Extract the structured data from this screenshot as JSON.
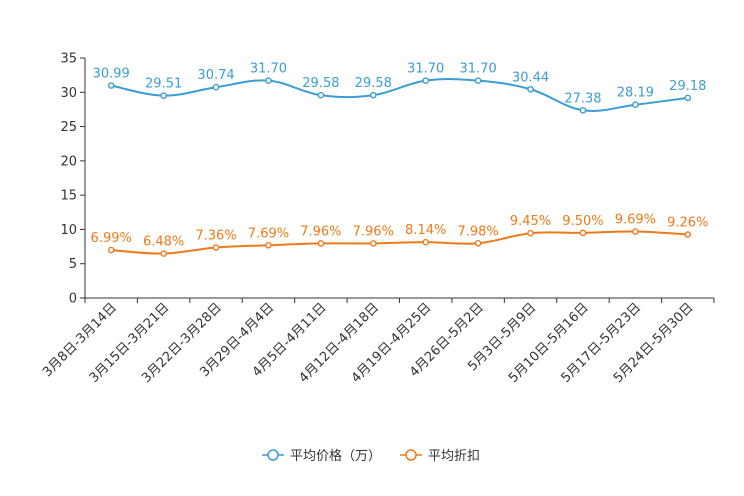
{
  "chart_data": {
    "type": "line",
    "categories": [
      "3月8日-3月14日",
      "3月15日-3月21日",
      "3月22日-3月28日",
      "3月29日-4月4日",
      "4月5日-4月11日",
      "4月12日-4月18日",
      "4月19日-4月25日",
      "4月26日-5月2日",
      "5月3日-5月9日",
      "5月10日-5月16日",
      "5月17日-5月23日",
      "5月24日-5月30日"
    ],
    "series": [
      {
        "name": "平均价格（万）",
        "color": "#3b9dd3",
        "values": [
          30.99,
          29.51,
          30.74,
          31.7,
          29.58,
          29.58,
          31.7,
          31.7,
          30.44,
          27.38,
          28.19,
          29.18
        ],
        "labels": [
          "30.99",
          "29.51",
          "30.74",
          "31.70",
          "29.58",
          "29.58",
          "31.70",
          "31.70",
          "30.44",
          "27.38",
          "28.19",
          "29.18"
        ]
      },
      {
        "name": "平均折扣",
        "color": "#f07a1a",
        "values": [
          6.99,
          6.48,
          7.36,
          7.69,
          7.96,
          7.96,
          8.14,
          7.98,
          9.45,
          9.5,
          9.69,
          9.26
        ],
        "labels": [
          "6.99%",
          "6.48%",
          "7.36%",
          "7.69%",
          "7.96%",
          "7.96%",
          "8.14%",
          "7.98%",
          "9.45%",
          "9.50%",
          "9.69%",
          "9.26%"
        ]
      }
    ],
    "y_ticks": [
      0,
      5,
      10,
      15,
      20,
      25,
      30,
      35
    ],
    "ylim": [
      0,
      35
    ],
    "legend_position": "bottom-center",
    "grid": false
  }
}
